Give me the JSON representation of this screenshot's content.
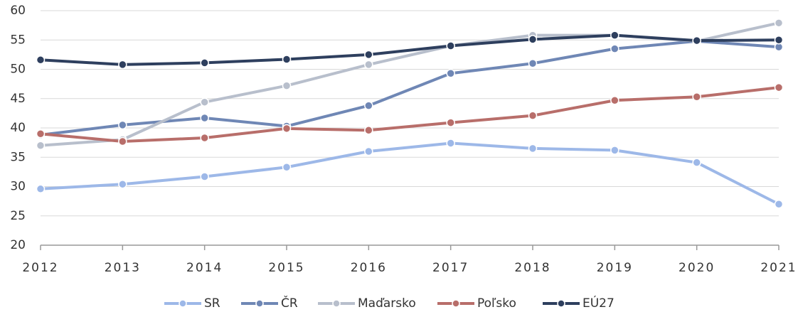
{
  "chart_data": {
    "type": "line",
    "x": [
      2012,
      2013,
      2014,
      2015,
      2016,
      2017,
      2018,
      2019,
      2020,
      2021
    ],
    "xlim": [
      2012,
      2021
    ],
    "xticks": [
      2012,
      2013,
      2014,
      2015,
      2016,
      2017,
      2018,
      2019,
      2020,
      2021
    ],
    "ylim": [
      20,
      60
    ],
    "yticks": [
      20,
      25,
      30,
      35,
      40,
      45,
      50,
      55,
      60
    ],
    "grid": true,
    "legend": "bottom",
    "series": [
      {
        "name": "SR",
        "color": "#9db8e8",
        "values": [
          29.6,
          30.4,
          31.7,
          33.3,
          36.0,
          37.4,
          36.5,
          36.2,
          34.1,
          27.0
        ]
      },
      {
        "name": "ČR",
        "color": "#6f87b5",
        "values": [
          38.8,
          40.5,
          41.7,
          40.3,
          43.8,
          49.3,
          51.0,
          53.5,
          54.8,
          53.8
        ]
      },
      {
        "name": "Maďarsko",
        "color": "#b8bfcc",
        "values": [
          37.0,
          38.0,
          44.4,
          47.2,
          50.8,
          54.0,
          55.8,
          55.8,
          54.8,
          57.9
        ]
      },
      {
        "name": "Poľsko",
        "color": "#b86e6a",
        "values": [
          39.0,
          37.7,
          38.3,
          39.9,
          39.6,
          40.9,
          42.1,
          44.7,
          45.3,
          46.9
        ]
      },
      {
        "name": "EÚ27",
        "color": "#2e3f5e",
        "values": [
          51.6,
          50.8,
          51.1,
          51.7,
          52.5,
          54.0,
          55.1,
          55.8,
          54.9,
          55.0
        ]
      }
    ]
  }
}
